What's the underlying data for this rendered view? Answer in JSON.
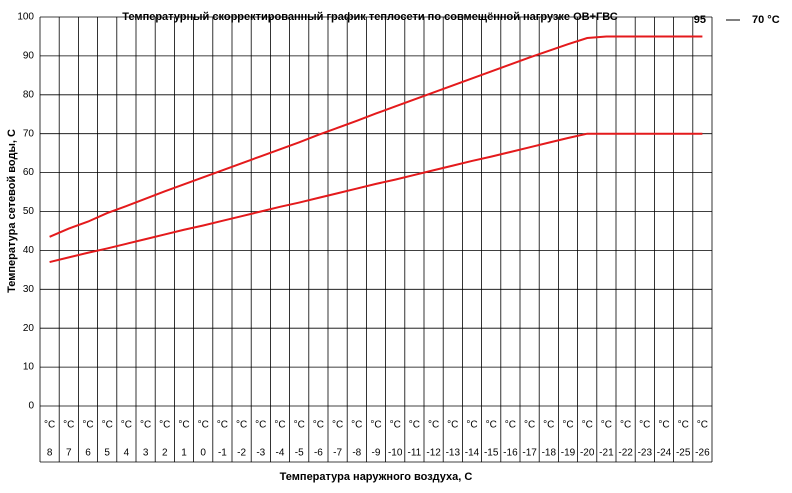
{
  "chart_data": {
    "type": "line",
    "title": "Температурный скорректированный график теплосети по совмещённой нагрузке ОВ+ГВС",
    "x_label": "Температура наружного воздуха, С",
    "y_label": "Температура сетевой воды, С",
    "category_unit": "°C",
    "categories": [
      "8",
      "7",
      "6",
      "5",
      "4",
      "3",
      "2",
      "1",
      "0",
      "-1",
      "-2",
      "-3",
      "-4",
      "-5",
      "-6",
      "-7",
      "-8",
      "-9",
      "-10",
      "-11",
      "-12",
      "-13",
      "-14",
      "-15",
      "-16",
      "-17",
      "-18",
      "-19",
      "-20",
      "-21",
      "-22",
      "-23",
      "-24",
      "-25",
      "-26"
    ],
    "series": [
      {
        "name": "95",
        "color": "#e41a1c",
        "values": [
          43.5,
          45.6,
          47.4,
          49.6,
          51.4,
          53.3,
          55.2,
          57,
          58.8,
          60.6,
          62.4,
          64.2,
          66,
          67.8,
          69.7,
          71.5,
          73.3,
          75.2,
          77,
          78.8,
          80.6,
          82.4,
          84.2,
          86,
          87.8,
          89.6,
          91.3,
          93,
          94.6,
          95,
          95,
          95,
          95,
          95,
          95
        ]
      },
      {
        "name": "70 °C",
        "color": "#e41a1c",
        "values": [
          37,
          38.2,
          39.4,
          40.5,
          41.7,
          42.9,
          44.1,
          45.3,
          46.4,
          47.6,
          48.8,
          50,
          51.2,
          52.3,
          53.5,
          54.7,
          55.9,
          57.1,
          58.2,
          59.4,
          60.6,
          61.8,
          63,
          64.1,
          65.3,
          66.5,
          67.7,
          68.9,
          70,
          70,
          70,
          70,
          70,
          70,
          70
        ]
      }
    ],
    "ylim": [
      0,
      100
    ],
    "yticks": [
      0,
      10,
      20,
      30,
      40,
      50,
      60,
      70,
      80,
      90,
      100
    ],
    "grid": true
  }
}
